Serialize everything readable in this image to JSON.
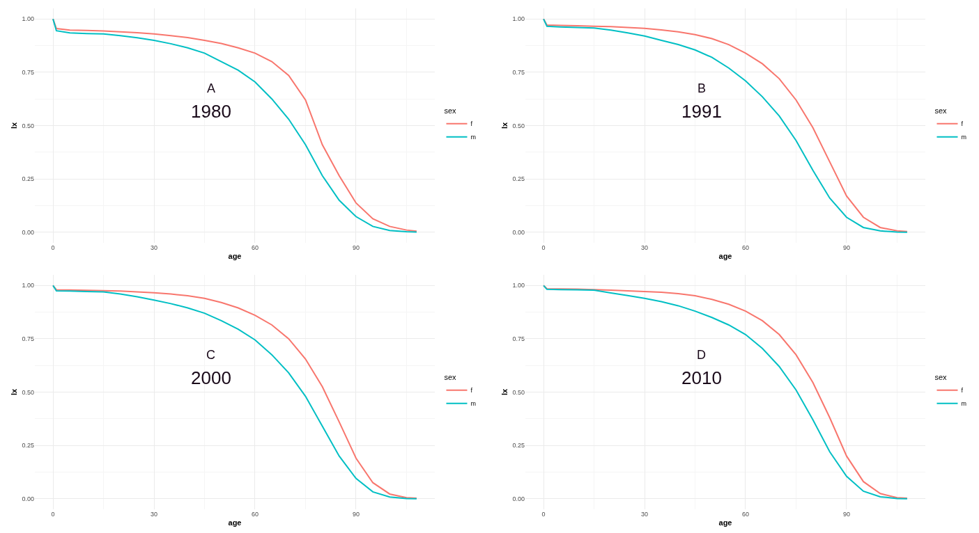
{
  "chart_data": [
    {
      "type": "line",
      "xlabel": "age",
      "ylabel": "lx",
      "legend_title": "sex",
      "legend": "right",
      "grid": true,
      "annotations": [
        "A",
        "1980"
      ],
      "xlim": [
        -5.4,
        113.4
      ],
      "ylim": [
        -0.05,
        1.05
      ],
      "xticks": [
        0,
        30,
        60,
        90
      ],
      "yticks": [
        {
          "value": 0,
          "label": "0.00"
        },
        {
          "value": 0.25,
          "label": "0.25"
        },
        {
          "value": 0.5,
          "label": "0.50"
        },
        {
          "value": 0.75,
          "label": "0.75"
        },
        {
          "value": 1,
          "label": "1.00"
        }
      ],
      "x": [
        0,
        1,
        5,
        10,
        15,
        20,
        25,
        30,
        35,
        40,
        45,
        50,
        55,
        60,
        65,
        70,
        75,
        80,
        85,
        90,
        95,
        100,
        105,
        108
      ],
      "series": [
        {
          "name": "f",
          "color": "#f8766d",
          "values": [
            1,
            0.955,
            0.948,
            0.946,
            0.944,
            0.94,
            0.936,
            0.93,
            0.922,
            0.913,
            0.9,
            0.885,
            0.865,
            0.84,
            0.8,
            0.735,
            0.62,
            0.41,
            0.265,
            0.137,
            0.063,
            0.027,
            0.01,
            0.005
          ]
        },
        {
          "name": "m",
          "color": "#00bfc4",
          "values": [
            1,
            0.945,
            0.935,
            0.932,
            0.93,
            0.922,
            0.912,
            0.9,
            0.884,
            0.865,
            0.84,
            0.8,
            0.76,
            0.705,
            0.625,
            0.53,
            0.41,
            0.265,
            0.15,
            0.073,
            0.027,
            0.008,
            0.002,
            0.001
          ]
        }
      ]
    },
    {
      "type": "line",
      "xlabel": "age",
      "ylabel": "lx",
      "legend_title": "sex",
      "legend": "right",
      "grid": true,
      "annotations": [
        "B",
        "1991"
      ],
      "xlim": [
        -5.4,
        113.4
      ],
      "ylim": [
        -0.05,
        1.05
      ],
      "xticks": [
        0,
        30,
        60,
        90
      ],
      "yticks": [
        {
          "value": 0,
          "label": "0.00"
        },
        {
          "value": 0.25,
          "label": "0.25"
        },
        {
          "value": 0.5,
          "label": "0.50"
        },
        {
          "value": 0.75,
          "label": "0.75"
        },
        {
          "value": 1,
          "label": "1.00"
        }
      ],
      "x": [
        0,
        1,
        5,
        10,
        15,
        20,
        25,
        30,
        35,
        40,
        45,
        50,
        55,
        60,
        65,
        70,
        75,
        80,
        85,
        90,
        95,
        100,
        105,
        108
      ],
      "series": [
        {
          "name": "f",
          "color": "#f8766d",
          "values": [
            1,
            0.972,
            0.97,
            0.968,
            0.966,
            0.964,
            0.96,
            0.956,
            0.949,
            0.94,
            0.927,
            0.908,
            0.88,
            0.84,
            0.79,
            0.72,
            0.62,
            0.49,
            0.33,
            0.17,
            0.07,
            0.022,
            0.006,
            0.003
          ]
        },
        {
          "name": "m",
          "color": "#00bfc4",
          "values": [
            1,
            0.966,
            0.963,
            0.96,
            0.958,
            0.948,
            0.935,
            0.92,
            0.9,
            0.88,
            0.855,
            0.82,
            0.77,
            0.71,
            0.635,
            0.545,
            0.43,
            0.29,
            0.16,
            0.07,
            0.022,
            0.006,
            0.001,
            0
          ]
        }
      ]
    },
    {
      "type": "line",
      "xlabel": "age",
      "ylabel": "lx",
      "legend_title": "sex",
      "legend": "right",
      "grid": true,
      "annotations": [
        "C",
        "2000"
      ],
      "xlim": [
        -5.4,
        113.4
      ],
      "ylim": [
        -0.05,
        1.05
      ],
      "xticks": [
        0,
        30,
        60,
        90
      ],
      "yticks": [
        {
          "value": 0,
          "label": "0.00"
        },
        {
          "value": 0.25,
          "label": "0.25"
        },
        {
          "value": 0.5,
          "label": "0.50"
        },
        {
          "value": 0.75,
          "label": "0.75"
        },
        {
          "value": 1,
          "label": "1.00"
        }
      ],
      "x": [
        0,
        1,
        5,
        10,
        15,
        20,
        25,
        30,
        35,
        40,
        45,
        50,
        55,
        60,
        65,
        70,
        75,
        80,
        85,
        90,
        95,
        100,
        105,
        108
      ],
      "series": [
        {
          "name": "f",
          "color": "#f8766d",
          "values": [
            1,
            0.98,
            0.979,
            0.977,
            0.976,
            0.974,
            0.97,
            0.966,
            0.96,
            0.952,
            0.94,
            0.92,
            0.895,
            0.86,
            0.815,
            0.75,
            0.655,
            0.525,
            0.36,
            0.19,
            0.075,
            0.022,
            0.005,
            0.002
          ]
        },
        {
          "name": "m",
          "color": "#00bfc4",
          "values": [
            1,
            0.975,
            0.974,
            0.972,
            0.97,
            0.96,
            0.947,
            0.932,
            0.915,
            0.895,
            0.87,
            0.835,
            0.795,
            0.745,
            0.675,
            0.59,
            0.48,
            0.34,
            0.2,
            0.095,
            0.032,
            0.008,
            0.001,
            0
          ]
        }
      ]
    },
    {
      "type": "line",
      "xlabel": "age",
      "ylabel": "lx",
      "legend_title": "sex",
      "legend": "right",
      "grid": true,
      "annotations": [
        "D",
        "2010"
      ],
      "xlim": [
        -5.4,
        113.4
      ],
      "ylim": [
        -0.05,
        1.05
      ],
      "xticks": [
        0,
        30,
        60,
        90
      ],
      "yticks": [
        {
          "value": 0,
          "label": "0.00"
        },
        {
          "value": 0.25,
          "label": "0.25"
        },
        {
          "value": 0.5,
          "label": "0.50"
        },
        {
          "value": 0.75,
          "label": "0.75"
        },
        {
          "value": 1,
          "label": "1.00"
        }
      ],
      "x": [
        0,
        1,
        5,
        10,
        15,
        20,
        25,
        30,
        35,
        40,
        45,
        50,
        55,
        60,
        65,
        70,
        75,
        80,
        85,
        90,
        95,
        100,
        105,
        108
      ],
      "series": [
        {
          "name": "f",
          "color": "#f8766d",
          "values": [
            1,
            0.985,
            0.984,
            0.983,
            0.981,
            0.978,
            0.975,
            0.972,
            0.968,
            0.962,
            0.952,
            0.935,
            0.912,
            0.88,
            0.835,
            0.77,
            0.675,
            0.545,
            0.38,
            0.2,
            0.08,
            0.024,
            0.005,
            0.002
          ]
        },
        {
          "name": "m",
          "color": "#00bfc4",
          "values": [
            1,
            0.982,
            0.981,
            0.98,
            0.978,
            0.965,
            0.953,
            0.94,
            0.924,
            0.905,
            0.88,
            0.85,
            0.815,
            0.77,
            0.705,
            0.62,
            0.51,
            0.37,
            0.22,
            0.105,
            0.035,
            0.009,
            0.001,
            0
          ]
        }
      ]
    }
  ]
}
